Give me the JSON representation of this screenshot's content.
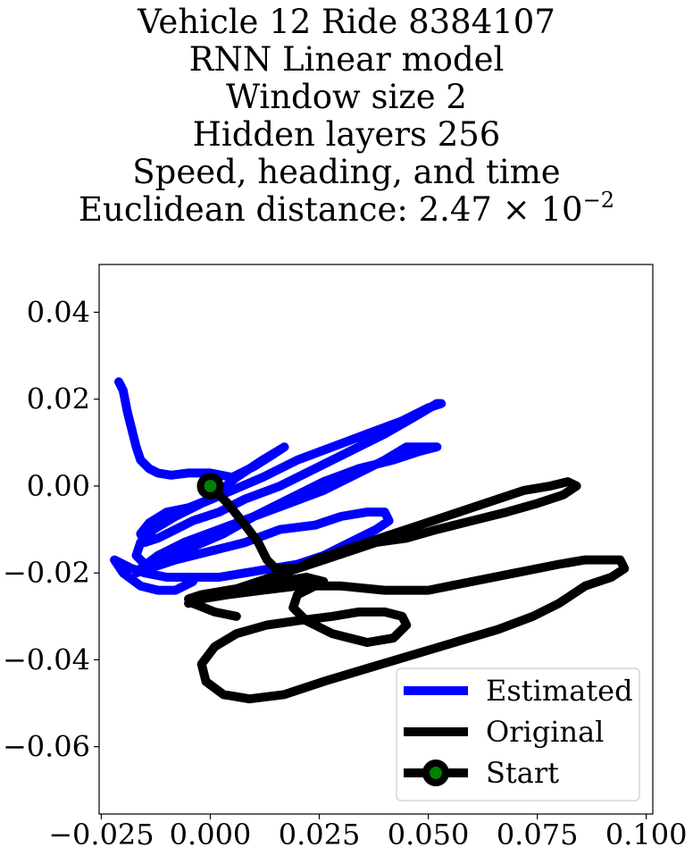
{
  "chart_data": {
    "type": "line",
    "title_lines": [
      "Vehicle 12 Ride 8384107",
      "RNN Linear model",
      "Window size 2",
      "Hidden layers 256",
      "Speed, heading, and time"
    ],
    "title_metric_prefix": "Euclidean distance: 2.47 × 10",
    "title_metric_exponent": "−2",
    "xlim": [
      -0.0255,
      0.1015
    ],
    "ylim": [
      -0.0755,
      0.051
    ],
    "x_ticks": [
      -0.025,
      0.0,
      0.025,
      0.05,
      0.075,
      0.1
    ],
    "x_tick_labels": [
      "−0.025",
      "0.000",
      "0.025",
      "0.050",
      "0.075",
      "0.100"
    ],
    "y_ticks": [
      0.04,
      0.02,
      0.0,
      -0.02,
      -0.04,
      -0.06
    ],
    "y_tick_labels": [
      "0.04",
      "0.02",
      "0.00",
      "−0.02",
      "−0.04",
      "−0.06"
    ],
    "grid": false,
    "legend_position": "lower-right",
    "series": [
      {
        "name": "Estimated",
        "color": "#0000ff",
        "x": [
          -0.021,
          -0.02,
          -0.019,
          -0.018,
          -0.017,
          -0.016,
          -0.014,
          -0.012,
          -0.009,
          -0.005,
          0.0,
          0.005,
          0.01,
          0.014,
          0.017,
          0.012,
          0.006,
          0.0,
          -0.005,
          -0.01,
          -0.014,
          -0.016,
          -0.015,
          -0.012,
          -0.008,
          -0.004,
          0.002,
          0.008,
          0.016,
          0.024,
          0.032,
          0.04,
          0.047,
          0.052,
          0.053,
          0.05,
          0.044,
          0.036,
          0.028,
          0.02,
          0.012,
          0.005,
          -0.002,
          -0.008,
          -0.013,
          -0.016,
          -0.017,
          -0.015,
          -0.01,
          -0.004,
          0.003,
          0.01,
          0.018,
          0.026,
          0.034,
          0.042,
          0.048,
          0.052,
          0.05,
          0.045,
          0.04,
          0.034,
          0.026,
          0.018,
          0.01,
          0.002,
          -0.006,
          -0.012,
          -0.016,
          -0.017,
          -0.014,
          -0.008,
          0.0,
          0.008,
          0.016,
          0.024,
          0.03,
          0.036,
          0.04,
          0.041,
          0.038,
          0.032,
          0.026,
          0.02,
          0.014,
          0.008,
          0.002,
          -0.004,
          -0.01,
          -0.015,
          -0.018,
          -0.02,
          -0.022,
          -0.02,
          -0.016,
          -0.012,
          -0.008,
          -0.004
        ],
        "y": [
          0.024,
          0.022,
          0.017,
          0.013,
          0.009,
          0.006,
          0.004,
          0.003,
          0.0025,
          0.003,
          0.003,
          0.002,
          0.0045,
          0.007,
          0.009,
          0.006,
          0.002,
          -0.003,
          -0.005,
          -0.006,
          -0.0085,
          -0.011,
          -0.013,
          -0.012,
          -0.01,
          -0.008,
          -0.006,
          -0.003,
          0.0,
          0.004,
          0.008,
          0.012,
          0.016,
          0.019,
          0.019,
          0.018,
          0.015,
          0.012,
          0.009,
          0.006,
          0.002,
          -0.001,
          -0.004,
          -0.007,
          -0.01,
          -0.013,
          -0.016,
          -0.018,
          -0.017,
          -0.014,
          -0.011,
          -0.007,
          -0.003,
          0.001,
          0.004,
          0.006,
          0.008,
          0.009,
          0.009,
          0.009,
          0.006,
          0.003,
          -0.001,
          -0.004,
          -0.007,
          -0.01,
          -0.013,
          -0.016,
          -0.019,
          -0.02,
          -0.019,
          -0.017,
          -0.015,
          -0.013,
          -0.01,
          -0.009,
          -0.007,
          -0.006,
          -0.006,
          -0.008,
          -0.01,
          -0.013,
          -0.016,
          -0.018,
          -0.019,
          -0.02,
          -0.021,
          -0.021,
          -0.021,
          -0.02,
          -0.019,
          -0.018,
          -0.017,
          -0.02,
          -0.023,
          -0.024,
          -0.024,
          -0.022
        ]
      },
      {
        "name": "Original",
        "color": "#000000",
        "x": [
          0.0,
          0.004,
          0.008,
          0.011,
          0.013,
          0.015,
          0.02,
          0.024,
          0.03,
          0.036,
          0.042,
          0.048,
          0.054,
          0.06,
          0.066,
          0.072,
          0.078,
          0.082,
          0.084,
          0.081,
          0.075,
          0.068,
          0.06,
          0.052,
          0.045,
          0.038,
          0.032,
          0.026,
          0.02,
          0.014,
          0.008,
          0.002,
          -0.003,
          -0.005,
          -0.002,
          0.004,
          0.012,
          0.02,
          0.03,
          0.04,
          0.05,
          0.06,
          0.07,
          0.08,
          0.086,
          0.09,
          0.094,
          0.095,
          0.092,
          0.086,
          0.08,
          0.074,
          0.066,
          0.056,
          0.046,
          0.036,
          0.026,
          0.017,
          0.009,
          0.003,
          -0.001,
          -0.002,
          0.001,
          0.006,
          0.013,
          0.02,
          0.028,
          0.034,
          0.04,
          0.044,
          0.045,
          0.042,
          0.036,
          0.028,
          0.022,
          0.019,
          0.02,
          0.024,
          0.026,
          0.022,
          0.016,
          0.01,
          0.004,
          -0.002,
          -0.005,
          -0.004,
          0.001,
          0.006
        ],
        "y": [
          0.0,
          -0.004,
          -0.009,
          -0.013,
          -0.017,
          -0.019,
          -0.019,
          -0.017,
          -0.015,
          -0.013,
          -0.011,
          -0.009,
          -0.007,
          -0.005,
          -0.003,
          -0.001,
          0.0,
          0.001,
          0.0,
          -0.002,
          -0.004,
          -0.006,
          -0.008,
          -0.01,
          -0.012,
          -0.013,
          -0.015,
          -0.017,
          -0.019,
          -0.021,
          -0.023,
          -0.025,
          -0.026,
          -0.027,
          -0.026,
          -0.025,
          -0.024,
          -0.023,
          -0.023,
          -0.024,
          -0.024,
          -0.022,
          -0.02,
          -0.018,
          -0.017,
          -0.017,
          -0.017,
          -0.019,
          -0.021,
          -0.023,
          -0.027,
          -0.03,
          -0.033,
          -0.036,
          -0.039,
          -0.042,
          -0.045,
          -0.048,
          -0.049,
          -0.048,
          -0.045,
          -0.041,
          -0.037,
          -0.034,
          -0.032,
          -0.031,
          -0.03,
          -0.029,
          -0.029,
          -0.03,
          -0.032,
          -0.035,
          -0.036,
          -0.034,
          -0.031,
          -0.028,
          -0.025,
          -0.023,
          -0.022,
          -0.021,
          -0.022,
          -0.023,
          -0.024,
          -0.025,
          -0.026,
          -0.027,
          -0.029,
          -0.03
        ]
      }
    ],
    "start_point": {
      "name": "Start",
      "x": 0.0,
      "y": 0.0,
      "marker_face": "#008000",
      "marker_edge": "#000000"
    },
    "legend": [
      {
        "label": "Estimated",
        "color": "#0000ff"
      },
      {
        "label": "Original",
        "color": "#000000"
      },
      {
        "label": "Start",
        "color": "#000000",
        "marker_face": "#008000"
      }
    ]
  }
}
